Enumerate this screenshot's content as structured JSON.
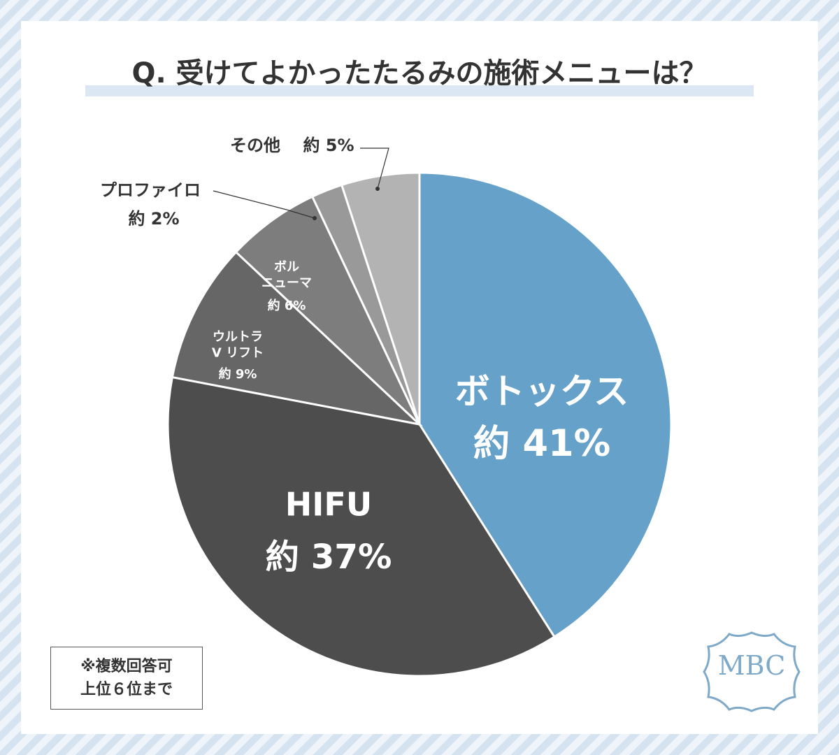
{
  "chart_data": {
    "type": "pie",
    "title": "Q. 受けてよかったたるみの施術メニューは？",
    "categories": [
      "ボトックス",
      "HIFU",
      "ウルトラ\nV リフト",
      "ボル\nニューマ",
      "プロファイロ",
      "その他"
    ],
    "values": [
      41,
      37,
      9,
      6,
      2,
      5
    ],
    "value_labels": [
      "約 41%",
      "約 37%",
      "約 9%",
      "約 6%",
      "約 2%",
      "約 5%"
    ],
    "colors": [
      "#65a1c9",
      "#4d4d4d",
      "#666666",
      "#7d7d7d",
      "#999999",
      "#b3b3b3"
    ],
    "note": "※複数回答可\n上位６位まで",
    "logo": "MBC"
  }
}
